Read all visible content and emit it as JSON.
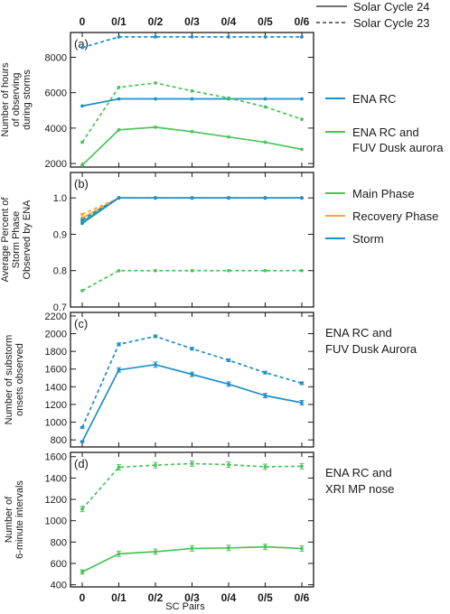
{
  "legend_top": {
    "solid_label": "Solar Cycle 24",
    "dashed_label": "Solar Cycle 23"
  },
  "colors": {
    "blue": "#1f8fc8",
    "green": "#4cc35a",
    "orange": "#f5a742",
    "axis": "#1a1a1a"
  },
  "xlabel": "SC Pairs",
  "chart_data": [
    {
      "type": "line",
      "panel_tag": "(a)",
      "ylabel": [
        "Number of hours",
        "of observing",
        "during storms"
      ],
      "categories": [
        "0",
        "0/1",
        "0/2",
        "0/3",
        "0/4",
        "0/5",
        "0/6"
      ],
      "ylim": [
        1800,
        9400
      ],
      "yticks": [
        2000,
        4000,
        6000,
        8000
      ],
      "series": [
        {
          "name": "ENA RC",
          "color": "blue",
          "cycle": "24",
          "dashed": false,
          "values": [
            5250,
            5650,
            5650,
            5650,
            5650,
            5650,
            5650
          ]
        },
        {
          "name": "ENA RC",
          "color": "blue",
          "cycle": "23",
          "dashed": true,
          "values": [
            8550,
            9150,
            9150,
            9150,
            9150,
            9150,
            9150
          ]
        },
        {
          "name": "ENA RC and FUV Dusk aurora",
          "color": "green",
          "cycle": "24",
          "dashed": false,
          "values": [
            1900,
            3900,
            4050,
            3800,
            3500,
            3200,
            2800
          ]
        },
        {
          "name": "ENA RC and FUV Dusk aurora",
          "color": "green",
          "cycle": "23",
          "dashed": true,
          "values": [
            3200,
            6300,
            6550,
            6100,
            5700,
            5200,
            4500
          ]
        }
      ],
      "legend": [
        {
          "color": "blue",
          "lines": [
            "ENA RC"
          ]
        },
        {
          "color": "green",
          "lines": [
            "ENA RC and",
            "FUV Dusk aurora"
          ]
        }
      ]
    },
    {
      "type": "line",
      "panel_tag": "(b)",
      "ylabel": [
        "Average Percent of",
        "Storm Phase",
        "Observed by ENA"
      ],
      "categories": [
        "0",
        "0/1",
        "0/2",
        "0/3",
        "0/4",
        "0/5",
        "0/6"
      ],
      "ylim": [
        0.7,
        1.07
      ],
      "yticks": [
        0.7,
        0.8,
        0.9,
        1.0
      ],
      "ytick_labels": [
        "0.7",
        "0.8",
        "0.9",
        "1.0"
      ],
      "series": [
        {
          "name": "Main Phase",
          "color": "green",
          "cycle": "24",
          "dashed": false,
          "values": [
            0.935,
            1.0,
            1.0,
            1.0,
            1.0,
            1.0,
            1.0
          ]
        },
        {
          "name": "Main Phase",
          "color": "green",
          "cycle": "23",
          "dashed": true,
          "values": [
            0.745,
            0.8,
            0.8,
            0.8,
            0.8,
            0.8,
            0.8
          ]
        },
        {
          "name": "Recovery Phase",
          "color": "orange",
          "cycle": "24",
          "dashed": false,
          "values": [
            0.945,
            1.0,
            1.0,
            1.0,
            1.0,
            1.0,
            1.0
          ]
        },
        {
          "name": "Recovery Phase",
          "color": "orange",
          "cycle": "23",
          "dashed": true,
          "values": [
            0.955,
            1.0,
            1.0,
            1.0,
            1.0,
            1.0,
            1.0
          ]
        },
        {
          "name": "Storm",
          "color": "blue",
          "cycle": "24",
          "dashed": false,
          "values": [
            0.93,
            1.0,
            1.0,
            1.0,
            1.0,
            1.0,
            1.0
          ]
        },
        {
          "name": "Storm",
          "color": "blue",
          "cycle": "23",
          "dashed": true,
          "values": [
            0.94,
            1.0,
            1.0,
            1.0,
            1.0,
            1.0,
            1.0
          ]
        }
      ],
      "legend": [
        {
          "color": "green",
          "lines": [
            "Main Phase"
          ]
        },
        {
          "color": "orange",
          "lines": [
            "Recovery Phase"
          ]
        },
        {
          "color": "blue",
          "lines": [
            "Storm"
          ]
        }
      ]
    },
    {
      "type": "line",
      "panel_tag": "(c)",
      "ylabel": [
        "Number of substorm",
        "onsets observed"
      ],
      "categories": [
        "0",
        "0/1",
        "0/2",
        "0/3",
        "0/4",
        "0/5",
        "0/6"
      ],
      "ylim": [
        720,
        2240
      ],
      "yticks": [
        800,
        1000,
        1200,
        1400,
        1600,
        1800,
        2000,
        2200
      ],
      "side_note": [
        "ENA RC and",
        "FUV Dusk Aurora"
      ],
      "series": [
        {
          "name": "ENA RC and FUV Dusk Aurora",
          "color": "blue",
          "cycle": "24",
          "dashed": false,
          "values": [
            780,
            1590,
            1650,
            1540,
            1430,
            1300,
            1220
          ],
          "errors": [
            10,
            25,
            30,
            25,
            25,
            25,
            25
          ]
        },
        {
          "name": "ENA RC and FUV Dusk Aurora",
          "color": "blue",
          "cycle": "23",
          "dashed": true,
          "values": [
            940,
            1880,
            1970,
            1830,
            1700,
            1560,
            1440
          ],
          "errors": [
            10,
            15,
            15,
            15,
            15,
            15,
            15
          ]
        }
      ]
    },
    {
      "type": "line",
      "panel_tag": "(d)",
      "ylabel": [
        "Number of",
        "6-minute intervals"
      ],
      "categories": [
        "0",
        "0/1",
        "0/2",
        "0/3",
        "0/4",
        "0/5",
        "0/6"
      ],
      "ylim": [
        380,
        1640
      ],
      "yticks": [
        400,
        600,
        800,
        1000,
        1200,
        1400,
        1600
      ],
      "side_note": [
        "ENA RC and",
        "XRI MP nose"
      ],
      "series": [
        {
          "name": "ENA RC and XRI MP nose",
          "color": "green",
          "cycle": "24",
          "dashed": false,
          "values": [
            520,
            690,
            710,
            740,
            745,
            755,
            740
          ],
          "errors": [
            20,
            25,
            25,
            25,
            25,
            25,
            25
          ]
        },
        {
          "name": "ENA RC and XRI MP nose",
          "color": "green",
          "cycle": "23",
          "dashed": true,
          "values": [
            1110,
            1500,
            1520,
            1535,
            1525,
            1505,
            1510
          ],
          "errors": [
            25,
            25,
            25,
            25,
            25,
            25,
            25
          ]
        }
      ]
    }
  ]
}
